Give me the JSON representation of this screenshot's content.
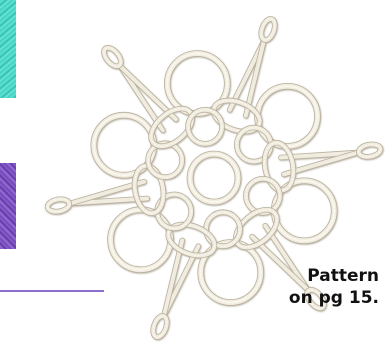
{
  "caption": {
    "line1": "Pattern",
    "line2": "on pg 15."
  },
  "colors": {
    "thread": "#f1ece0",
    "thread_shadow": "#b9b09c",
    "teal_swatch": "#43d4c5",
    "purple_swatch": "#7a4ec1",
    "accent_rule": "#8b6fcf",
    "caption_text": "#111111"
  },
  "images": {
    "main": "tatted-snowflake",
    "swatch_top": "teal-thread-swatch",
    "swatch_middle": "purple-thread-swatch"
  }
}
